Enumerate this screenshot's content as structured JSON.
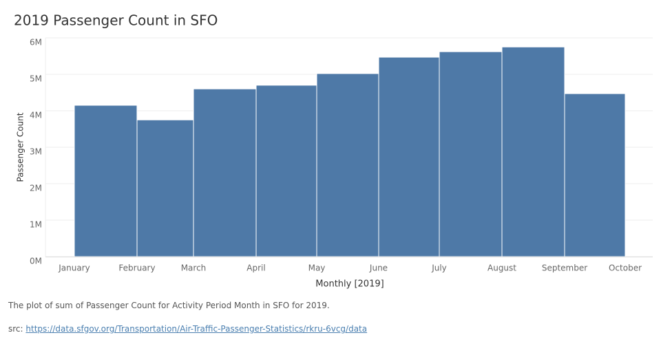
{
  "chart_data": {
    "type": "bar",
    "title": "2019 Passenger Count in SFO",
    "x_label": "Monthly [2019]",
    "y_label": "Passenger Count",
    "categories": [
      "January",
      "February",
      "March",
      "April",
      "May",
      "June",
      "July",
      "August",
      "September",
      "October"
    ],
    "values": [
      4150000,
      3750000,
      4600000,
      4700000,
      5020000,
      5470000,
      5620000,
      5750000,
      4470000,
      null
    ],
    "color": "#4e79a7",
    "ylim": [
      0,
      6000000
    ],
    "yticks": [
      {
        "value": 0,
        "label": "0M"
      },
      {
        "value": 1000000,
        "label": "1M"
      },
      {
        "value": 2000000,
        "label": "2M"
      },
      {
        "value": 3000000,
        "label": "3M"
      },
      {
        "value": 4000000,
        "label": "4M"
      },
      {
        "value": 5000000,
        "label": "5M"
      },
      {
        "value": 6000000,
        "label": "6M"
      }
    ],
    "grid": true
  },
  "caption": "The plot of sum of Passenger Count for Activity Period Month in SFO for 2019.",
  "source": {
    "prefix": "src:",
    "link": "https://data.sfgov.org/Transportation/Air-Traffic-Passenger-Statistics/rkru-6vcg/data"
  }
}
